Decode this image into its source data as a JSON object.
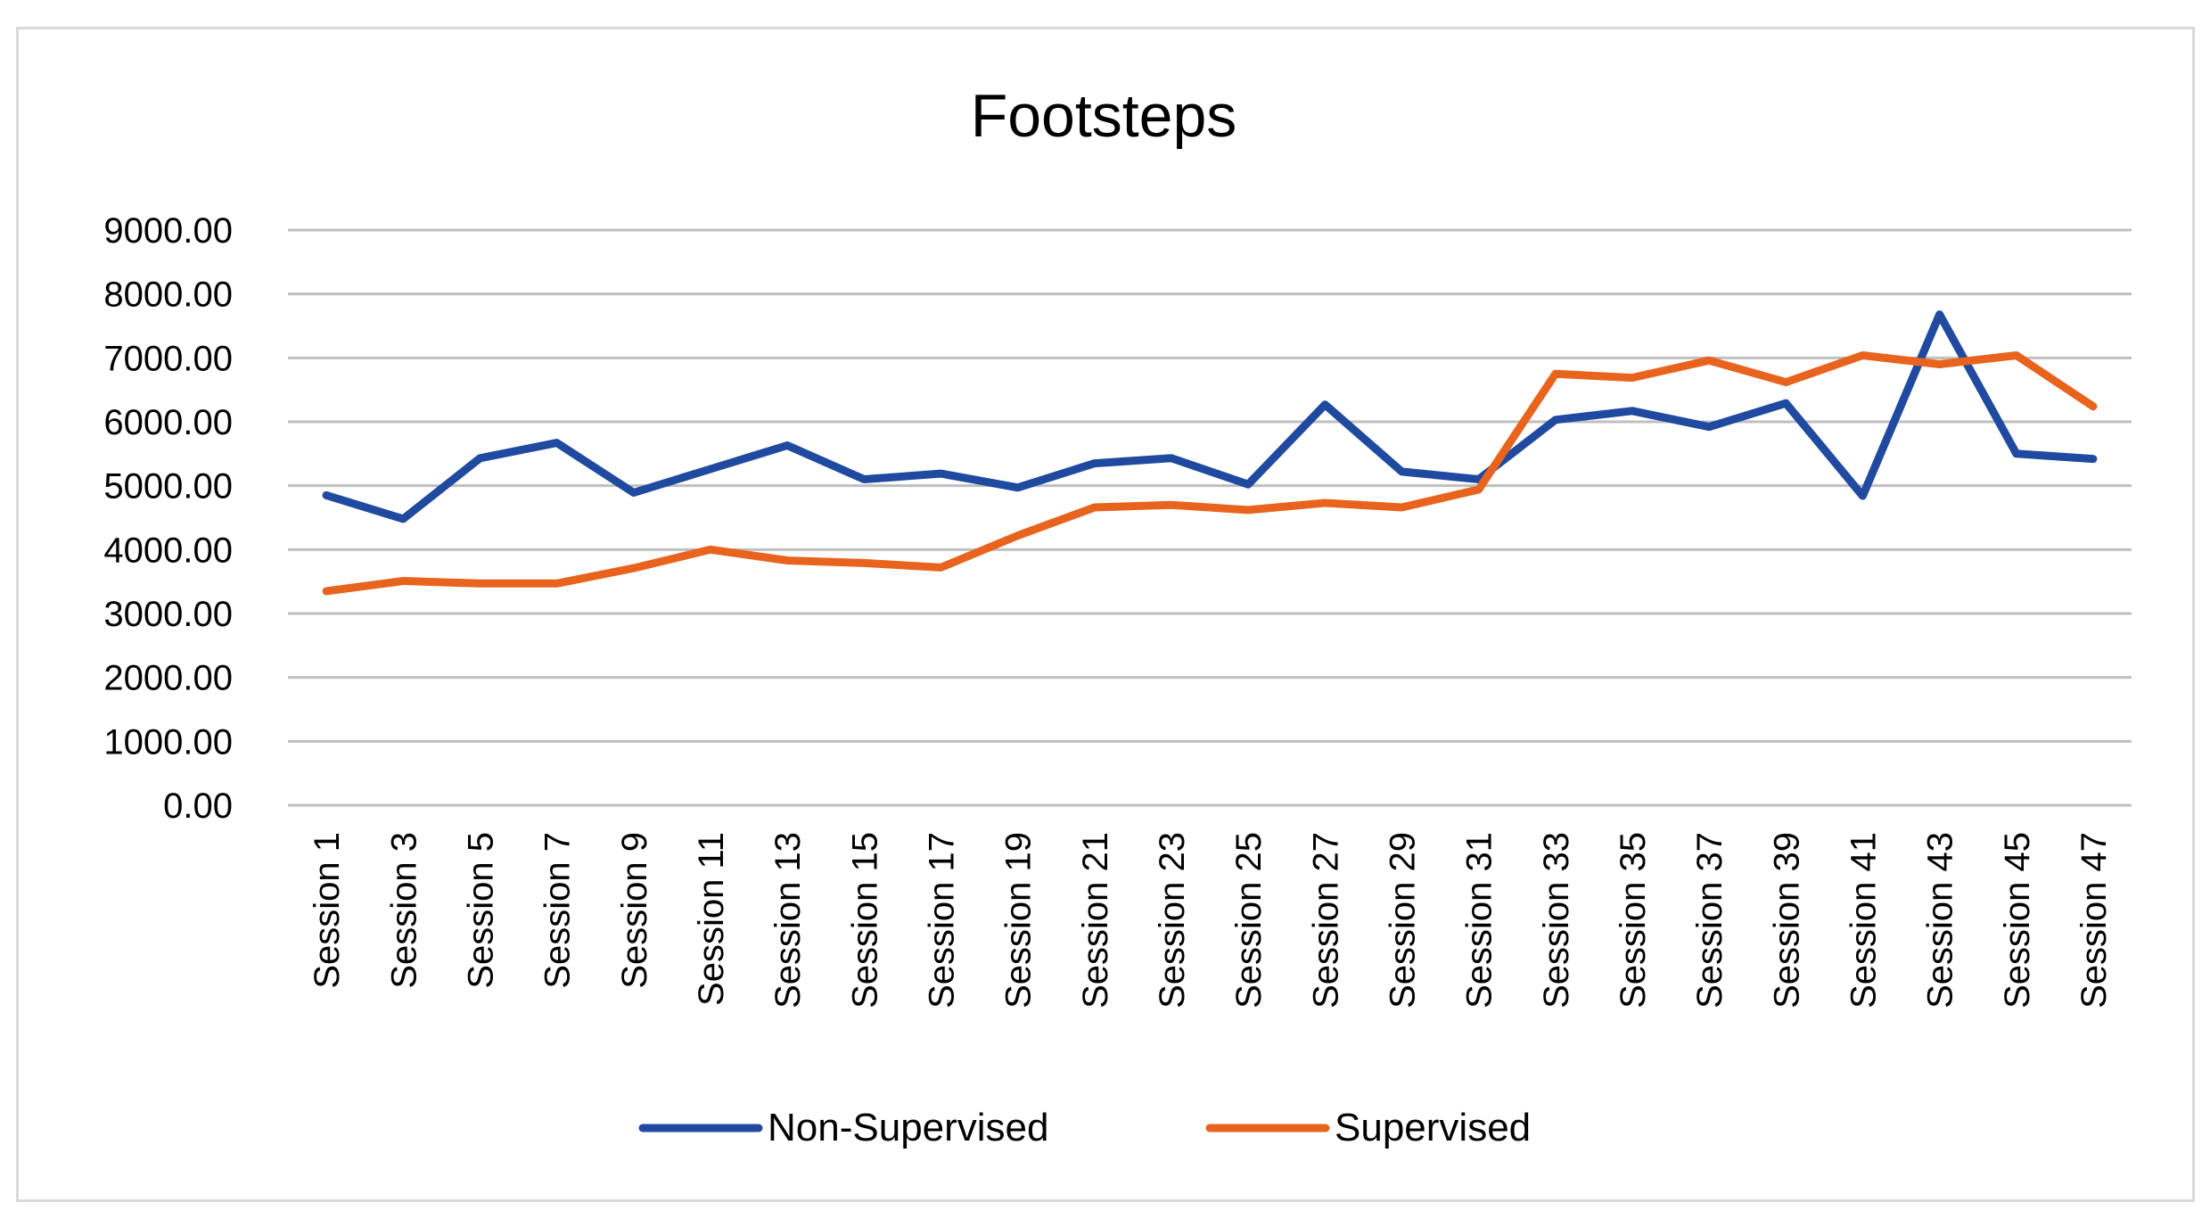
{
  "chart_data": {
    "type": "line",
    "title": "Footsteps",
    "xlabel": "",
    "ylabel": "",
    "ylim": [
      0,
      9000
    ],
    "y_ticks": [
      "0.00",
      "1000.00",
      "2000.00",
      "3000.00",
      "4000.00",
      "5000.00",
      "6000.00",
      "7000.00",
      "8000.00",
      "9000.00"
    ],
    "grid": true,
    "legend_position": "bottom",
    "categories": [
      "Session 1",
      "Session 3",
      "Session 5",
      "Session 7",
      "Session 9",
      "Session 11",
      "Session 13",
      "Session 15",
      "Session 17",
      "Session 19",
      "Session 21",
      "Session 23",
      "Session 25",
      "Session 27",
      "Session 29",
      "Session 31",
      "Session 33",
      "Session 35",
      "Session 37",
      "Session 39",
      "Session 41",
      "Session 43",
      "Session 45",
      "Session 47"
    ],
    "series": [
      {
        "name": "Non-Supervised",
        "color": "#1f4aa0",
        "values": [
          4850,
          4480,
          5430,
          5670,
          4890,
          5260,
          5630,
          5100,
          5190,
          4970,
          5350,
          5430,
          5020,
          6270,
          5220,
          5100,
          6030,
          6170,
          5920,
          6290,
          4840,
          7680,
          5500,
          5420
        ]
      },
      {
        "name": "Supervised",
        "color": "#e8641e",
        "values": [
          3350,
          3510,
          3470,
          3470,
          3710,
          4000,
          3830,
          3790,
          3720,
          4220,
          4660,
          4700,
          4620,
          4730,
          4660,
          4940,
          6750,
          6690,
          6960,
          6620,
          7040,
          6900,
          7040,
          6240
        ]
      }
    ]
  }
}
